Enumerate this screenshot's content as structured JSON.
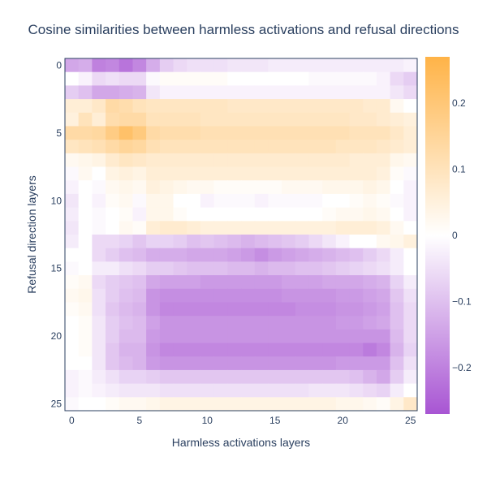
{
  "chart_data": {
    "type": "heatmap",
    "title": "Cosine similarities between harmless activations and refusal directions",
    "xlabel": "Harmless activations layers",
    "ylabel": "Refusal direction layers",
    "x_ticks": [
      0,
      5,
      10,
      15,
      20,
      25
    ],
    "y_ticks": [
      0,
      5,
      10,
      15,
      20,
      25
    ],
    "n_cols": 26,
    "n_rows": 26,
    "zlim": [
      -0.27,
      0.27
    ],
    "colorbar_ticks": [
      0.2,
      0.1,
      0,
      -0.1,
      -0.2
    ],
    "colorbar_tick_labels": [
      "0.2",
      "0.1",
      "0",
      "−0.1",
      "−0.2"
    ],
    "colorscale": {
      "negative": "#a855d3",
      "mid": "#ffffff",
      "positive": "#ffb347"
    },
    "z": [
      [
        -0.14,
        -0.13,
        -0.2,
        -0.19,
        -0.22,
        -0.19,
        -0.13,
        -0.08,
        -0.06,
        -0.05,
        -0.05,
        -0.05,
        -0.04,
        -0.04,
        -0.04,
        -0.03,
        -0.03,
        -0.03,
        -0.03,
        -0.03,
        -0.03,
        -0.03,
        -0.03,
        -0.03,
        -0.03,
        -0.02
      ],
      [
        0.0,
        -0.02,
        -0.06,
        -0.05,
        -0.06,
        -0.06,
        -0.01,
        0.01,
        0.01,
        0.01,
        0.01,
        0.01,
        0.0,
        0.0,
        0.0,
        0.0,
        0.0,
        0.0,
        -0.01,
        -0.01,
        -0.01,
        -0.01,
        -0.01,
        -0.02,
        -0.06,
        -0.08
      ],
      [
        -0.08,
        -0.1,
        -0.14,
        -0.14,
        -0.13,
        -0.12,
        -0.04,
        -0.02,
        -0.02,
        -0.02,
        -0.02,
        -0.02,
        -0.02,
        -0.02,
        -0.02,
        -0.02,
        -0.02,
        -0.02,
        -0.02,
        -0.02,
        -0.02,
        -0.02,
        -0.02,
        -0.02,
        -0.04,
        -0.06
      ],
      [
        0.06,
        0.06,
        0.08,
        0.13,
        0.12,
        0.1,
        0.09,
        0.09,
        0.09,
        0.09,
        0.09,
        0.09,
        0.08,
        0.08,
        0.08,
        0.08,
        0.08,
        0.08,
        0.08,
        0.08,
        0.08,
        0.08,
        0.07,
        0.07,
        0.02,
        0.0
      ],
      [
        0.05,
        0.1,
        0.06,
        0.12,
        0.13,
        0.13,
        0.1,
        0.1,
        0.1,
        0.1,
        0.09,
        0.09,
        0.09,
        0.09,
        0.09,
        0.09,
        0.09,
        0.09,
        0.09,
        0.09,
        0.09,
        0.08,
        0.08,
        0.07,
        0.06,
        0.05
      ],
      [
        0.13,
        0.13,
        0.14,
        0.18,
        0.22,
        0.19,
        0.13,
        0.12,
        0.12,
        0.12,
        0.11,
        0.11,
        0.11,
        0.11,
        0.11,
        0.11,
        0.11,
        0.11,
        0.11,
        0.11,
        0.11,
        0.1,
        0.1,
        0.1,
        0.08,
        0.06
      ],
      [
        0.09,
        0.1,
        0.11,
        0.13,
        0.15,
        0.14,
        0.11,
        0.1,
        0.1,
        0.1,
        0.1,
        0.1,
        0.1,
        0.1,
        0.1,
        0.1,
        0.1,
        0.1,
        0.1,
        0.1,
        0.09,
        0.09,
        0.09,
        0.08,
        0.07,
        0.06
      ],
      [
        0.02,
        0.03,
        0.04,
        0.07,
        0.09,
        0.08,
        0.07,
        0.07,
        0.07,
        0.07,
        0.07,
        0.07,
        0.07,
        0.07,
        0.07,
        0.07,
        0.07,
        0.07,
        0.07,
        0.07,
        0.07,
        0.06,
        0.06,
        0.06,
        0.03,
        0.02
      ],
      [
        -0.01,
        0.02,
        0.0,
        0.04,
        0.05,
        0.04,
        0.06,
        0.06,
        0.06,
        0.06,
        0.06,
        0.06,
        0.06,
        0.06,
        0.06,
        0.06,
        0.06,
        0.06,
        0.06,
        0.06,
        0.06,
        0.06,
        0.06,
        0.05,
        0.01,
        -0.01
      ],
      [
        -0.02,
        0.0,
        -0.01,
        0.02,
        0.03,
        0.02,
        0.05,
        0.04,
        0.03,
        0.02,
        0.02,
        0.01,
        0.01,
        0.01,
        0.01,
        0.01,
        0.02,
        0.02,
        0.02,
        0.03,
        0.03,
        0.03,
        0.04,
        0.03,
        0.0,
        -0.02
      ],
      [
        -0.04,
        0.0,
        -0.02,
        0.01,
        0.02,
        -0.01,
        0.03,
        0.03,
        0.0,
        0.0,
        -0.02,
        -0.01,
        -0.01,
        -0.01,
        -0.02,
        -0.01,
        -0.01,
        -0.01,
        -0.01,
        0.0,
        0.0,
        0.01,
        0.02,
        0.01,
        -0.01,
        -0.02
      ],
      [
        -0.03,
        0.0,
        -0.01,
        0.0,
        0.01,
        -0.02,
        0.03,
        0.03,
        0.01,
        0.0,
        0.0,
        0.0,
        0.0,
        0.0,
        0.0,
        0.0,
        0.0,
        0.0,
        0.0,
        0.01,
        0.02,
        0.02,
        0.03,
        0.02,
        0.0,
        -0.02
      ],
      [
        -0.04,
        0.0,
        -0.01,
        0.0,
        0.02,
        0.01,
        0.06,
        0.07,
        0.07,
        0.06,
        0.05,
        0.05,
        0.05,
        0.05,
        0.05,
        0.05,
        0.05,
        0.05,
        0.05,
        0.05,
        0.06,
        0.06,
        0.06,
        0.05,
        0.02,
        0.0
      ],
      [
        -0.03,
        0.0,
        -0.06,
        -0.06,
        -0.07,
        -0.09,
        -0.07,
        -0.07,
        -0.08,
        -0.1,
        -0.09,
        -0.1,
        -0.11,
        -0.12,
        -0.11,
        -0.1,
        -0.09,
        -0.08,
        -0.06,
        -0.04,
        -0.02,
        0.0,
        0.0,
        0.02,
        0.03,
        0.05
      ],
      [
        0.0,
        0.0,
        -0.06,
        -0.08,
        -0.1,
        -0.11,
        -0.13,
        -0.13,
        -0.13,
        -0.14,
        -0.14,
        -0.14,
        -0.15,
        -0.16,
        -0.18,
        -0.16,
        -0.15,
        -0.14,
        -0.13,
        -0.12,
        -0.11,
        -0.1,
        -0.08,
        -0.06,
        -0.03,
        0.0
      ],
      [
        -0.01,
        0.0,
        -0.03,
        -0.03,
        -0.05,
        -0.06,
        -0.08,
        -0.08,
        -0.09,
        -0.1,
        -0.1,
        -0.1,
        -0.11,
        -0.11,
        -0.12,
        -0.11,
        -0.11,
        -0.1,
        -0.1,
        -0.09,
        -0.08,
        -0.07,
        -0.06,
        -0.05,
        -0.03,
        0.0
      ],
      [
        0.01,
        0.02,
        -0.06,
        -0.08,
        -0.09,
        -0.1,
        -0.14,
        -0.15,
        -0.15,
        -0.15,
        -0.16,
        -0.16,
        -0.16,
        -0.16,
        -0.16,
        -0.16,
        -0.15,
        -0.15,
        -0.15,
        -0.14,
        -0.14,
        -0.14,
        -0.13,
        -0.12,
        -0.07,
        -0.03
      ],
      [
        0.02,
        0.03,
        -0.05,
        -0.08,
        -0.1,
        -0.11,
        -0.17,
        -0.18,
        -0.18,
        -0.18,
        -0.18,
        -0.18,
        -0.18,
        -0.18,
        -0.18,
        -0.18,
        -0.17,
        -0.17,
        -0.17,
        -0.17,
        -0.16,
        -0.16,
        -0.15,
        -0.14,
        -0.09,
        -0.05
      ],
      [
        0.01,
        0.02,
        -0.05,
        -0.09,
        -0.11,
        -0.12,
        -0.17,
        -0.19,
        -0.19,
        -0.19,
        -0.19,
        -0.19,
        -0.19,
        -0.19,
        -0.19,
        -0.19,
        -0.19,
        -0.18,
        -0.18,
        -0.18,
        -0.17,
        -0.17,
        -0.16,
        -0.15,
        -0.1,
        -0.06
      ],
      [
        0.0,
        0.01,
        -0.04,
        -0.08,
        -0.1,
        -0.11,
        -0.15,
        -0.17,
        -0.17,
        -0.17,
        -0.17,
        -0.17,
        -0.17,
        -0.17,
        -0.17,
        -0.17,
        -0.17,
        -0.17,
        -0.17,
        -0.17,
        -0.16,
        -0.16,
        -0.15,
        -0.14,
        -0.1,
        -0.06
      ],
      [
        0.0,
        0.01,
        -0.04,
        -0.08,
        -0.11,
        -0.11,
        -0.16,
        -0.17,
        -0.17,
        -0.17,
        -0.17,
        -0.17,
        -0.17,
        -0.17,
        -0.17,
        -0.17,
        -0.17,
        -0.17,
        -0.17,
        -0.17,
        -0.17,
        -0.17,
        -0.17,
        -0.17,
        -0.11,
        -0.06
      ],
      [
        0.0,
        0.01,
        -0.04,
        -0.09,
        -0.12,
        -0.12,
        -0.17,
        -0.19,
        -0.19,
        -0.19,
        -0.19,
        -0.19,
        -0.19,
        -0.19,
        -0.19,
        -0.19,
        -0.19,
        -0.19,
        -0.19,
        -0.19,
        -0.19,
        -0.19,
        -0.21,
        -0.19,
        -0.12,
        -0.07
      ],
      [
        0.0,
        0.0,
        -0.04,
        -0.09,
        -0.11,
        -0.12,
        -0.16,
        -0.17,
        -0.17,
        -0.17,
        -0.17,
        -0.17,
        -0.17,
        -0.17,
        -0.17,
        -0.17,
        -0.17,
        -0.17,
        -0.17,
        -0.17,
        -0.16,
        -0.16,
        -0.16,
        -0.16,
        -0.1,
        -0.05
      ],
      [
        -0.02,
        -0.01,
        -0.03,
        -0.05,
        -0.07,
        -0.07,
        -0.08,
        -0.09,
        -0.09,
        -0.09,
        -0.09,
        -0.09,
        -0.09,
        -0.09,
        -0.09,
        -0.09,
        -0.09,
        -0.09,
        -0.09,
        -0.09,
        -0.09,
        -0.1,
        -0.12,
        -0.14,
        -0.08,
        -0.03
      ],
      [
        -0.02,
        -0.01,
        -0.02,
        -0.03,
        -0.04,
        -0.04,
        -0.04,
        -0.05,
        -0.05,
        -0.05,
        -0.05,
        -0.05,
        -0.05,
        -0.05,
        -0.05,
        -0.05,
        -0.05,
        -0.05,
        -0.04,
        -0.04,
        -0.04,
        -0.05,
        -0.06,
        -0.07,
        -0.03,
        0.0
      ],
      [
        -0.01,
        0.0,
        0.0,
        0.01,
        0.02,
        0.02,
        0.03,
        0.04,
        0.04,
        0.04,
        0.04,
        0.04,
        0.04,
        0.04,
        0.04,
        0.04,
        0.04,
        0.04,
        0.04,
        0.04,
        0.03,
        0.03,
        0.02,
        0.01,
        0.04,
        0.08
      ]
    ]
  }
}
